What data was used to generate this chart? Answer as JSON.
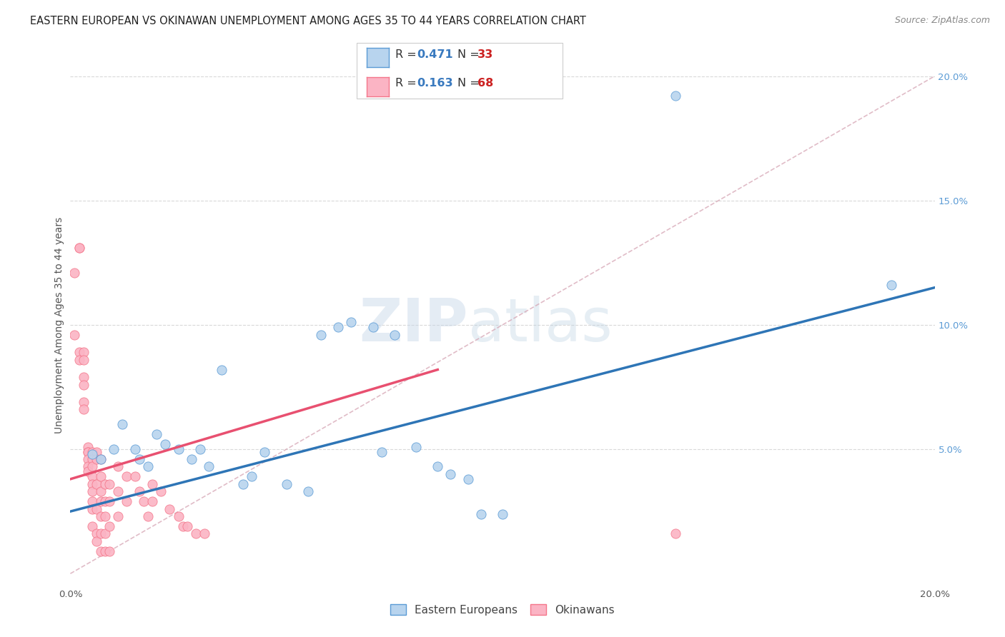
{
  "title": "EASTERN EUROPEAN VS OKINAWAN UNEMPLOYMENT AMONG AGES 35 TO 44 YEARS CORRELATION CHART",
  "source": "Source: ZipAtlas.com",
  "ylabel": "Unemployment Among Ages 35 to 44 years",
  "xlim": [
    0.0,
    0.2
  ],
  "ylim": [
    -0.005,
    0.205
  ],
  "xticks": [
    0.0,
    0.2
  ],
  "xticklabels": [
    "0.0%",
    "20.0%"
  ],
  "yticks_right": [
    0.05,
    0.1,
    0.15,
    0.2
  ],
  "yticklabels_right": [
    "5.0%",
    "10.0%",
    "15.0%",
    "20.0%"
  ],
  "grid_yticks": [
    0.05,
    0.1,
    0.15,
    0.2
  ],
  "background_color": "#ffffff",
  "watermark_zip": "ZIP",
  "watermark_atlas": "atlas",
  "blue_color": "#5b9bd5",
  "pink_color": "#f4768a",
  "blue_scatter_face": "#b8d4ee",
  "blue_scatter_edge": "#5b9bd5",
  "pink_scatter_face": "#fbb4c4",
  "pink_scatter_edge": "#f4768a",
  "blue_line_color": "#2e75b6",
  "pink_line_color": "#e85070",
  "dashed_line_color": "#d4a0b0",
  "grid_color": "#d9d9d9",
  "eastern_europeans": [
    [
      0.005,
      0.048
    ],
    [
      0.007,
      0.046
    ],
    [
      0.01,
      0.05
    ],
    [
      0.012,
      0.06
    ],
    [
      0.015,
      0.05
    ],
    [
      0.016,
      0.046
    ],
    [
      0.018,
      0.043
    ],
    [
      0.02,
      0.056
    ],
    [
      0.022,
      0.052
    ],
    [
      0.025,
      0.05
    ],
    [
      0.028,
      0.046
    ],
    [
      0.03,
      0.05
    ],
    [
      0.032,
      0.043
    ],
    [
      0.035,
      0.082
    ],
    [
      0.04,
      0.036
    ],
    [
      0.042,
      0.039
    ],
    [
      0.045,
      0.049
    ],
    [
      0.05,
      0.036
    ],
    [
      0.055,
      0.033
    ],
    [
      0.058,
      0.096
    ],
    [
      0.062,
      0.099
    ],
    [
      0.065,
      0.101
    ],
    [
      0.07,
      0.099
    ],
    [
      0.072,
      0.049
    ],
    [
      0.075,
      0.096
    ],
    [
      0.08,
      0.051
    ],
    [
      0.085,
      0.043
    ],
    [
      0.088,
      0.04
    ],
    [
      0.092,
      0.038
    ],
    [
      0.095,
      0.024
    ],
    [
      0.1,
      0.024
    ],
    [
      0.14,
      0.192
    ],
    [
      0.19,
      0.116
    ]
  ],
  "okinawans": [
    [
      0.001,
      0.121
    ],
    [
      0.001,
      0.096
    ],
    [
      0.002,
      0.131
    ],
    [
      0.002,
      0.131
    ],
    [
      0.002,
      0.089
    ],
    [
      0.002,
      0.086
    ],
    [
      0.003,
      0.089
    ],
    [
      0.003,
      0.086
    ],
    [
      0.003,
      0.079
    ],
    [
      0.003,
      0.076
    ],
    [
      0.003,
      0.069
    ],
    [
      0.003,
      0.066
    ],
    [
      0.004,
      0.051
    ],
    [
      0.004,
      0.049
    ],
    [
      0.004,
      0.049
    ],
    [
      0.004,
      0.046
    ],
    [
      0.004,
      0.043
    ],
    [
      0.004,
      0.041
    ],
    [
      0.005,
      0.049
    ],
    [
      0.005,
      0.046
    ],
    [
      0.005,
      0.043
    ],
    [
      0.005,
      0.039
    ],
    [
      0.005,
      0.036
    ],
    [
      0.005,
      0.033
    ],
    [
      0.005,
      0.029
    ],
    [
      0.005,
      0.026
    ],
    [
      0.005,
      0.019
    ],
    [
      0.006,
      0.049
    ],
    [
      0.006,
      0.046
    ],
    [
      0.006,
      0.036
    ],
    [
      0.006,
      0.026
    ],
    [
      0.006,
      0.016
    ],
    [
      0.006,
      0.013
    ],
    [
      0.007,
      0.046
    ],
    [
      0.007,
      0.039
    ],
    [
      0.007,
      0.033
    ],
    [
      0.007,
      0.029
    ],
    [
      0.007,
      0.023
    ],
    [
      0.007,
      0.016
    ],
    [
      0.007,
      0.009
    ],
    [
      0.008,
      0.036
    ],
    [
      0.008,
      0.029
    ],
    [
      0.008,
      0.023
    ],
    [
      0.008,
      0.016
    ],
    [
      0.008,
      0.009
    ],
    [
      0.009,
      0.036
    ],
    [
      0.009,
      0.029
    ],
    [
      0.009,
      0.019
    ],
    [
      0.009,
      0.009
    ],
    [
      0.011,
      0.043
    ],
    [
      0.011,
      0.033
    ],
    [
      0.011,
      0.023
    ],
    [
      0.013,
      0.039
    ],
    [
      0.013,
      0.029
    ],
    [
      0.015,
      0.039
    ],
    [
      0.016,
      0.033
    ],
    [
      0.017,
      0.029
    ],
    [
      0.018,
      0.023
    ],
    [
      0.019,
      0.036
    ],
    [
      0.019,
      0.029
    ],
    [
      0.021,
      0.033
    ],
    [
      0.023,
      0.026
    ],
    [
      0.025,
      0.023
    ],
    [
      0.026,
      0.019
    ],
    [
      0.027,
      0.019
    ],
    [
      0.029,
      0.016
    ],
    [
      0.031,
      0.016
    ],
    [
      0.14,
      0.016
    ]
  ],
  "blue_line": {
    "x0": 0.0,
    "y0": 0.025,
    "x1": 0.2,
    "y1": 0.115
  },
  "pink_line": {
    "x0": 0.0,
    "y0": 0.038,
    "x1": 0.085,
    "y1": 0.082
  },
  "dashed_line": {
    "x0": 0.0,
    "y0": 0.0,
    "x1": 0.2,
    "y1": 0.2
  },
  "title_fontsize": 10.5,
  "tick_fontsize": 9.5,
  "ylabel_fontsize": 10
}
